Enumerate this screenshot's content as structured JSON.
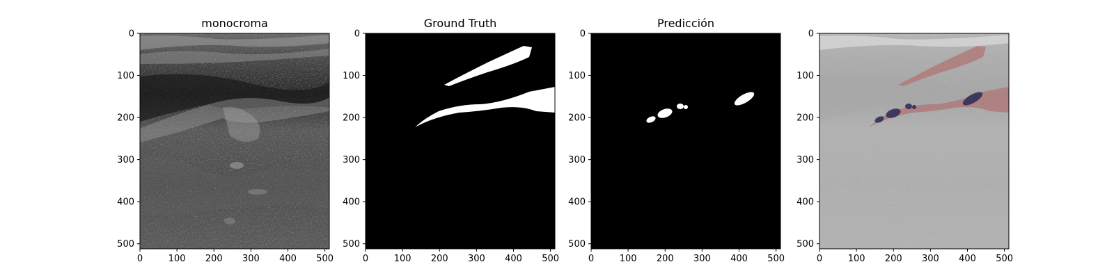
{
  "figure": {
    "panels": [
      {
        "id": "monochrome",
        "title": "monocroma",
        "image": "ultrasound-grayscale"
      },
      {
        "id": "ground-truth",
        "title": "Ground Truth",
        "image": "binary-mask-ground-truth"
      },
      {
        "id": "prediction",
        "title": "Predicción",
        "image": "binary-mask-prediction"
      },
      {
        "id": "overlay",
        "title": "",
        "image": "ultrasound-overlay"
      }
    ],
    "x_ticks": [
      "0",
      "100",
      "200",
      "300",
      "400",
      "500"
    ],
    "y_ticks": [
      "0",
      "100",
      "200",
      "300",
      "400",
      "500"
    ],
    "image_size": [
      512,
      512
    ],
    "colors": {
      "mask_foreground": "#ffffff",
      "mask_background": "#000000",
      "overlay_ground_truth": "#b07878",
      "overlay_prediction": "#2a2a55"
    }
  }
}
